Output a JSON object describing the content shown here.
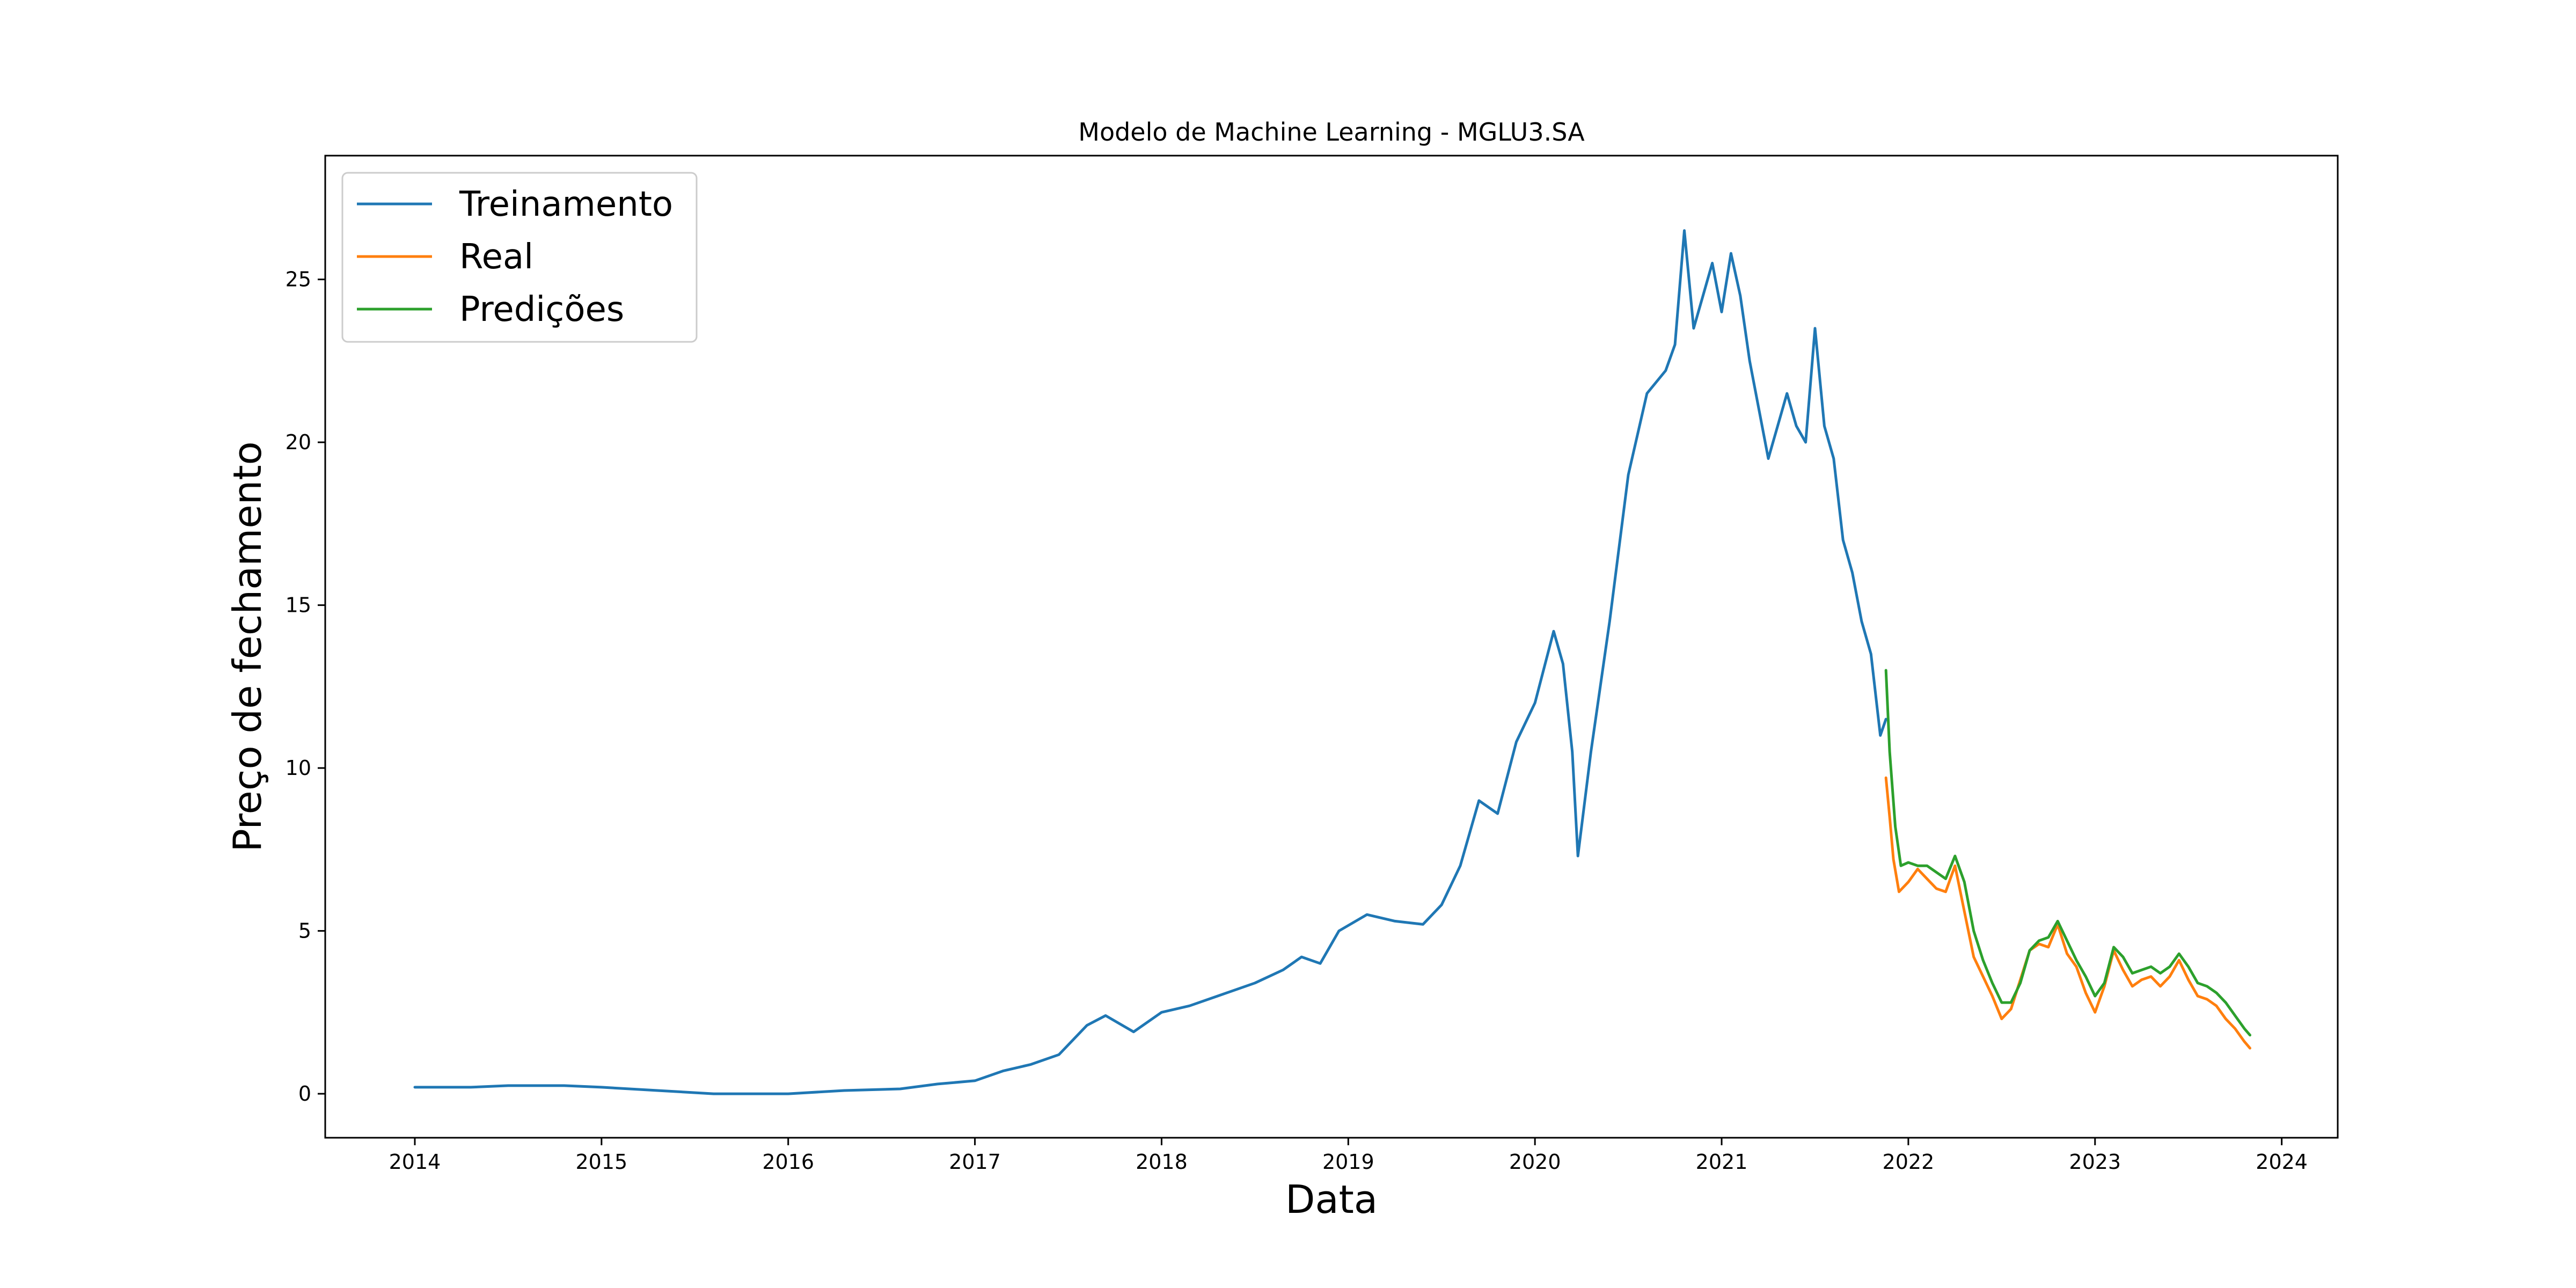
{
  "chart_data": {
    "type": "line",
    "title": "Modelo de Machine Learning - MGLU3.SA",
    "xlabel": "Data",
    "ylabel": "Preço de fechamento",
    "xlim": [
      2013.52,
      2024.3
    ],
    "ylim": [
      -1.35,
      28.8
    ],
    "x_ticks": [
      2014,
      2015,
      2016,
      2017,
      2018,
      2019,
      2020,
      2021,
      2022,
      2023,
      2024
    ],
    "y_ticks": [
      0,
      5,
      10,
      15,
      20,
      25
    ],
    "grid": false,
    "legend": "top-left",
    "series": [
      {
        "name": "Treinamento",
        "color": "#1f77b4",
        "x": [
          2014.0,
          2014.3,
          2014.5,
          2014.8,
          2015.0,
          2015.3,
          2015.6,
          2015.9,
          2016.0,
          2016.3,
          2016.6,
          2016.8,
          2017.0,
          2017.15,
          2017.3,
          2017.45,
          2017.6,
          2017.7,
          2017.85,
          2018.0,
          2018.15,
          2018.3,
          2018.5,
          2018.65,
          2018.75,
          2018.85,
          2018.95,
          2019.1,
          2019.25,
          2019.4,
          2019.5,
          2019.6,
          2019.7,
          2019.8,
          2019.9,
          2020.0,
          2020.1,
          2020.15,
          2020.2,
          2020.23,
          2020.3,
          2020.4,
          2020.5,
          2020.6,
          2020.7,
          2020.75,
          2020.8,
          2020.85,
          2020.9,
          2020.95,
          2021.0,
          2021.05,
          2021.1,
          2021.15,
          2021.2,
          2021.25,
          2021.3,
          2021.35,
          2021.4,
          2021.45,
          2021.5,
          2021.55,
          2021.6,
          2021.65,
          2021.7,
          2021.75,
          2021.8,
          2021.85,
          2021.88
        ],
        "values": [
          0.2,
          0.2,
          0.25,
          0.25,
          0.2,
          0.1,
          0.0,
          0.0,
          0.0,
          0.1,
          0.15,
          0.3,
          0.4,
          0.7,
          0.9,
          1.2,
          2.1,
          2.4,
          1.9,
          2.5,
          2.7,
          3.0,
          3.4,
          3.8,
          4.2,
          4.0,
          5.0,
          5.5,
          5.3,
          5.2,
          5.8,
          7.0,
          9.0,
          8.6,
          10.8,
          12.0,
          14.2,
          13.2,
          10.5,
          7.3,
          10.5,
          14.5,
          19.0,
          21.5,
          22.2,
          23.0,
          26.5,
          23.5,
          24.5,
          25.5,
          24.0,
          25.8,
          24.5,
          22.5,
          21.0,
          19.5,
          20.5,
          21.5,
          20.5,
          20.0,
          23.5,
          20.5,
          19.5,
          17.0,
          16.0,
          14.5,
          13.5,
          11.0,
          11.5
        ]
      },
      {
        "name": "Real",
        "color": "#ff7f0e",
        "x": [
          2021.88,
          2021.9,
          2021.92,
          2021.95,
          2022.0,
          2022.05,
          2022.1,
          2022.15,
          2022.2,
          2022.25,
          2022.3,
          2022.35,
          2022.4,
          2022.45,
          2022.5,
          2022.55,
          2022.6,
          2022.65,
          2022.7,
          2022.75,
          2022.8,
          2022.85,
          2022.9,
          2022.95,
          2023.0,
          2023.05,
          2023.1,
          2023.15,
          2023.2,
          2023.25,
          2023.3,
          2023.35,
          2023.4,
          2023.45,
          2023.5,
          2023.55,
          2023.6,
          2023.65,
          2023.7,
          2023.75,
          2023.8,
          2023.83
        ],
        "values": [
          9.7,
          8.5,
          7.2,
          6.2,
          6.5,
          6.9,
          6.6,
          6.3,
          6.2,
          7.0,
          5.6,
          4.2,
          3.6,
          3.0,
          2.3,
          2.6,
          3.5,
          4.4,
          4.6,
          4.5,
          5.2,
          4.3,
          3.9,
          3.1,
          2.5,
          3.3,
          4.4,
          3.8,
          3.3,
          3.5,
          3.6,
          3.3,
          3.6,
          4.1,
          3.5,
          3.0,
          2.9,
          2.7,
          2.3,
          2.0,
          1.6,
          1.4
        ]
      },
      {
        "name": "Predições",
        "color": "#2ca02c",
        "x": [
          2021.88,
          2021.9,
          2021.93,
          2021.96,
          2022.0,
          2022.05,
          2022.1,
          2022.15,
          2022.2,
          2022.25,
          2022.3,
          2022.35,
          2022.4,
          2022.45,
          2022.5,
          2022.55,
          2022.6,
          2022.65,
          2022.7,
          2022.75,
          2022.8,
          2022.85,
          2022.9,
          2022.95,
          2023.0,
          2023.05,
          2023.1,
          2023.15,
          2023.2,
          2023.25,
          2023.3,
          2023.35,
          2023.4,
          2023.45,
          2023.5,
          2023.55,
          2023.6,
          2023.65,
          2023.7,
          2023.75,
          2023.8,
          2023.83
        ],
        "values": [
          13.0,
          10.5,
          8.2,
          7.0,
          7.1,
          7.0,
          7.0,
          6.8,
          6.6,
          7.3,
          6.5,
          5.0,
          4.1,
          3.4,
          2.8,
          2.8,
          3.4,
          4.4,
          4.7,
          4.8,
          5.3,
          4.7,
          4.1,
          3.6,
          3.0,
          3.4,
          4.5,
          4.2,
          3.7,
          3.8,
          3.9,
          3.7,
          3.9,
          4.3,
          3.9,
          3.4,
          3.3,
          3.1,
          2.8,
          2.4,
          2.0,
          1.8
        ]
      }
    ]
  }
}
